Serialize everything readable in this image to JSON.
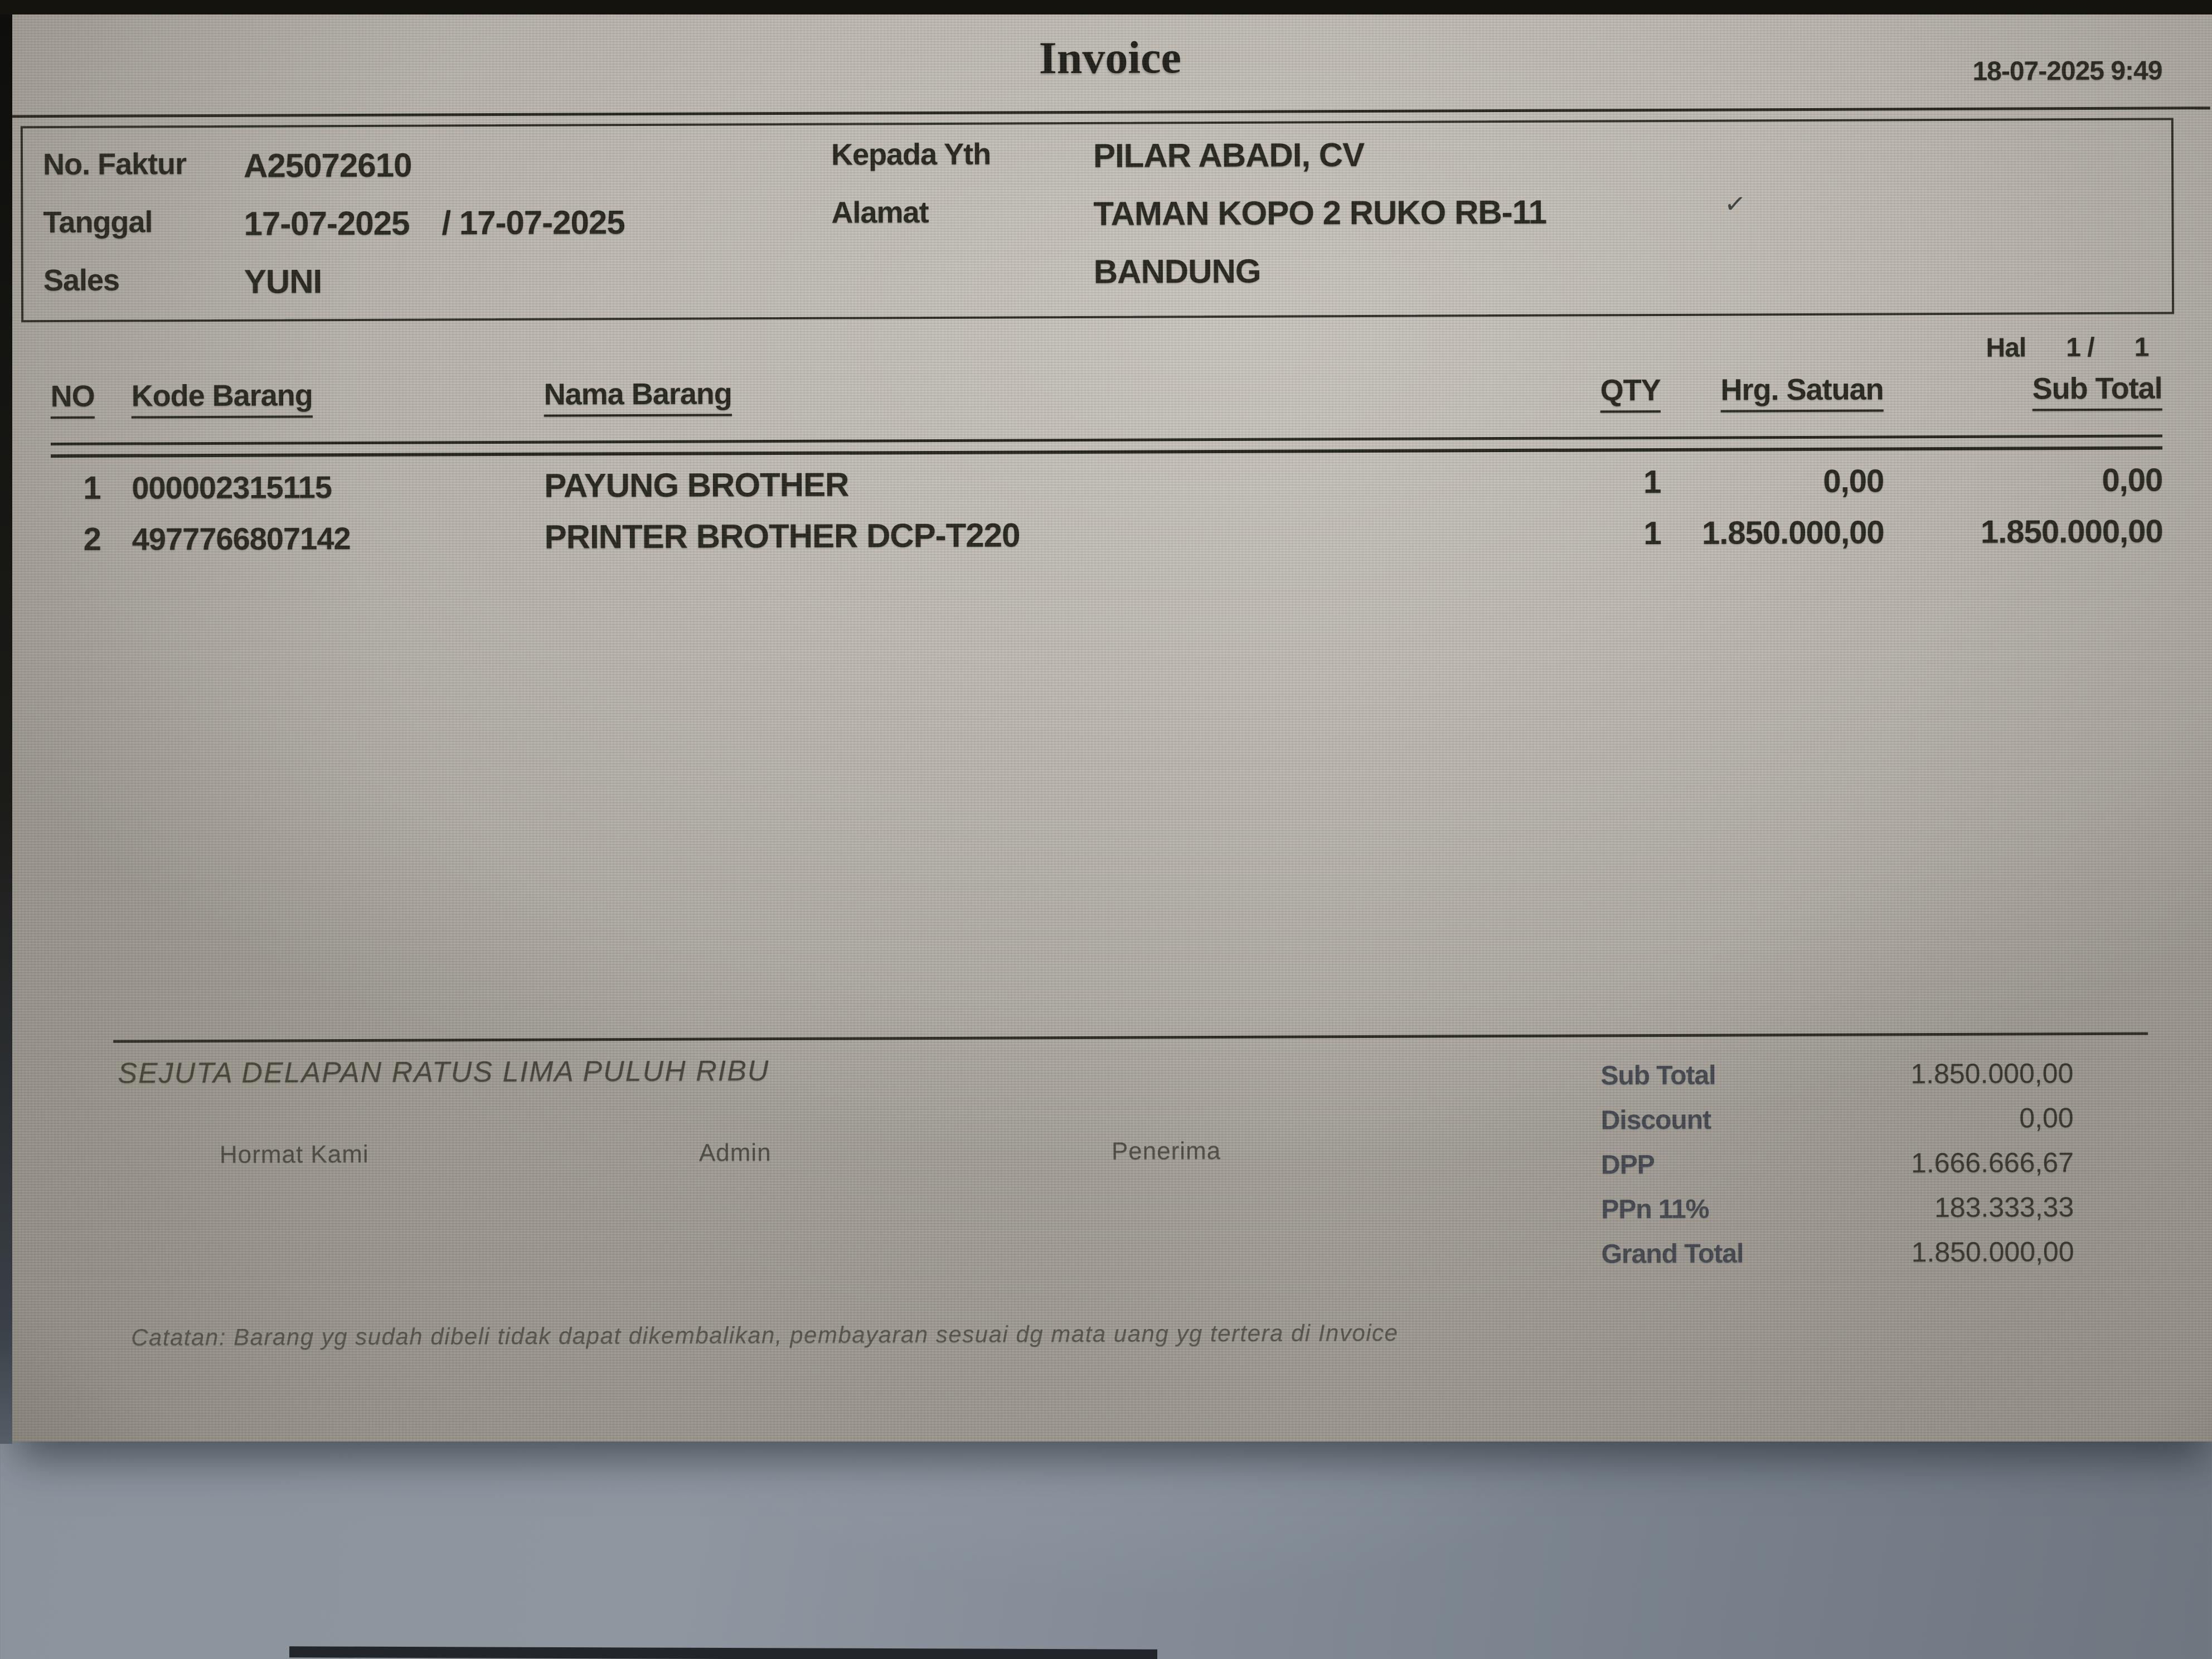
{
  "header": {
    "title": "Invoice",
    "printed_at": "18-07-2025 9:49"
  },
  "invoice_info": {
    "no_faktur_label": "No. Faktur",
    "no_faktur": "A25072610",
    "tanggal_label": "Tanggal",
    "tanggal": "17-07-2025",
    "tanggal_due": "/ 17-07-2025",
    "sales_label": "Sales",
    "sales": "YUNI",
    "kepada_label": "Kepada Yth",
    "kepada": "PILAR ABADI, CV",
    "alamat_label": "Alamat",
    "alamat_line1": "TAMAN KOPO 2 RUKO RB-11",
    "alamat_line2": "BANDUNG"
  },
  "page_indicator": {
    "label": "Hal",
    "page": "1 /",
    "total": "1"
  },
  "items_table": {
    "columns": [
      "NO",
      "Kode Barang",
      "Nama Barang",
      "QTY",
      "Hrg. Satuan",
      "Sub Total"
    ],
    "rows": [
      {
        "no": "1",
        "kode": "000002315115",
        "nama": "PAYUNG BROTHER",
        "qty": "1",
        "hrg_satuan": "0,00",
        "sub_total": "0,00"
      },
      {
        "no": "2",
        "kode": "4977766807142",
        "nama": "PRINTER BROTHER DCP-T220",
        "qty": "1",
        "hrg_satuan": "1.850.000,00",
        "sub_total": "1.850.000,00"
      }
    ]
  },
  "summary": {
    "terbilang": "SEJUTA DELAPAN RATUS LIMA PULUH RIBU",
    "rows": [
      {
        "label": "Sub Total",
        "value": "1.850.000,00"
      },
      {
        "label": "Discount",
        "value": "0,00"
      },
      {
        "label": "DPP",
        "value": "1.666.666,67"
      },
      {
        "label": "PPn 11%",
        "value": "183.333,33"
      },
      {
        "label": "Grand Total",
        "value": "1.850.000,00"
      }
    ]
  },
  "signatures": [
    "Hormat Kami",
    "Admin",
    "Penerima"
  ],
  "note": "Catatan: Barang yg sudah dibeli tidak dapat dikembalikan, pembayaran sesuai dg mata uang yg tertera di Invoice",
  "icons": {
    "cursor_check": "✓"
  },
  "colors": {
    "paper": "#bdb9b1",
    "ink": "#26251e",
    "background": "#828b95",
    "bezel": "#14130e"
  }
}
